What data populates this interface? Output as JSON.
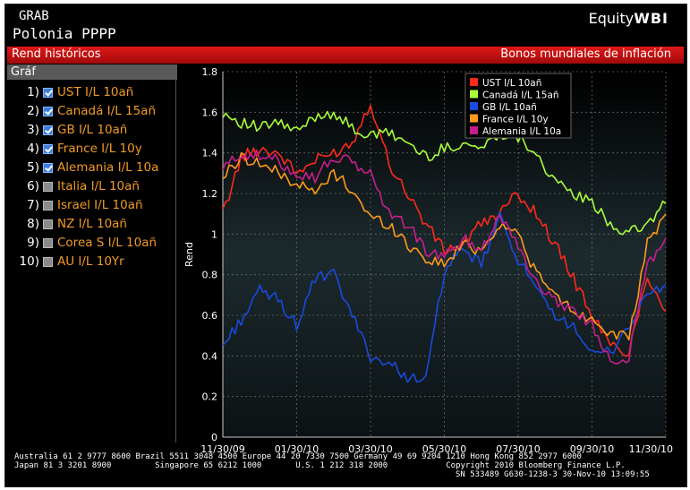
{
  "header": {
    "command": "GRAB",
    "security": "Polonia PPPP",
    "brand_prefix": "Equity",
    "brand_suffix": "WBI"
  },
  "bar": {
    "left": "Rend históricos",
    "right": "Bonos mundiales de inflación"
  },
  "sidebar": {
    "title": "Gráf",
    "items": [
      {
        "num": "1)",
        "label": "UST I/L 10añ",
        "checked": true
      },
      {
        "num": "2)",
        "label": "Canadá I/L 15añ",
        "checked": true
      },
      {
        "num": "3)",
        "label": "GB I/L 10añ",
        "checked": true
      },
      {
        "num": "4)",
        "label": "France I/L 10y",
        "checked": true
      },
      {
        "num": "5)",
        "label": "Alemania I/L 10a",
        "checked": true
      },
      {
        "num": "6)",
        "label": "Italia I/L 10añ",
        "checked": false
      },
      {
        "num": "7)",
        "label": "Israel I/L 10añ",
        "checked": false
      },
      {
        "num": "8)",
        "label": "NZ I/L 10añ",
        "checked": false
      },
      {
        "num": "9)",
        "label": "Corea S I/L 10añ",
        "checked": false
      },
      {
        "num": "10)",
        "label": "AU I/L 10Yr",
        "checked": false
      }
    ]
  },
  "footer": {
    "line1": "Australia 61 2 9777 8600 Brazil 5511 3048 4500 Europe 44 20 7330 7500 Germany 49 69 9204 1210 Hong Kong 852 2977 6000",
    "line2": "Japan 81 3 3201 8900         Singapore 65 6212 1000       U.S. 1 212 318 2000            Copyright 2010 Bloomberg Finance L.P.",
    "line3": "SN 533489 G630-1238-3 30-Nov-10 13:09:55"
  },
  "chart_data": {
    "type": "line",
    "ylabel": "Rend",
    "ylim": [
      0,
      1.8
    ],
    "yticks": [
      "0",
      "0.2",
      "0.4",
      "0.6",
      "0.8",
      "1",
      "1.2",
      "1.4",
      "1.6",
      "1.8"
    ],
    "xticks": [
      "11/30/09",
      "01/30/10",
      "03/30/10",
      "05/30/10",
      "07/30/10",
      "09/30/10",
      "11/30/10"
    ],
    "legend_placement": "top-right",
    "grid": true,
    "x": [
      "11/30/09",
      "12/15/09",
      "12/31/09",
      "01/15/10",
      "01/30/10",
      "02/15/10",
      "02/28/10",
      "03/15/10",
      "03/30/10",
      "04/15/10",
      "04/30/10",
      "05/15/10",
      "05/30/10",
      "06/15/10",
      "06/30/10",
      "07/15/10",
      "07/30/10",
      "08/15/10",
      "08/30/10",
      "09/15/10",
      "09/30/10",
      "10/15/10",
      "10/30/10",
      "11/15/10",
      "11/30/10"
    ],
    "series": [
      {
        "name": "UST I/L 10añ",
        "color": "#ff2a1a",
        "values": [
          1.1,
          1.38,
          1.42,
          1.4,
          1.3,
          1.36,
          1.4,
          1.45,
          1.65,
          1.35,
          1.2,
          1.05,
          0.92,
          0.95,
          1.05,
          1.1,
          1.2,
          1.1,
          0.95,
          0.78,
          0.6,
          0.45,
          0.42,
          0.8,
          0.62
        ]
      },
      {
        "name": "Canadá I/L 15añ",
        "color": "#a8ff3a",
        "values": [
          1.6,
          1.55,
          1.52,
          1.55,
          1.5,
          1.58,
          1.6,
          1.52,
          1.48,
          1.5,
          1.45,
          1.38,
          1.42,
          1.45,
          1.42,
          1.5,
          1.48,
          1.4,
          1.25,
          1.2,
          1.15,
          1.05,
          1.0,
          1.05,
          1.15
        ]
      },
      {
        "name": "GB I/L 10añ",
        "color": "#1a4adf",
        "values": [
          0.45,
          0.58,
          0.72,
          0.68,
          0.55,
          0.78,
          0.8,
          0.6,
          0.4,
          0.36,
          0.3,
          0.28,
          0.82,
          0.92,
          0.85,
          1.08,
          0.88,
          0.72,
          0.58,
          0.56,
          0.4,
          0.42,
          0.55,
          0.7,
          0.75
        ]
      },
      {
        "name": "France I/L 10y",
        "color": "#ff9a1a",
        "values": [
          1.28,
          1.38,
          1.35,
          1.3,
          1.25,
          1.2,
          1.3,
          1.22,
          1.08,
          1.05,
          0.95,
          0.88,
          0.85,
          0.95,
          0.92,
          1.05,
          1.0,
          0.8,
          0.7,
          0.62,
          0.58,
          0.52,
          0.48,
          0.95,
          1.1
        ]
      },
      {
        "name": "Alemania I/L 10a",
        "color": "#c81e8c",
        "values": [
          1.32,
          1.4,
          1.38,
          1.36,
          1.3,
          1.28,
          1.38,
          1.35,
          1.3,
          1.1,
          1.05,
          0.92,
          0.88,
          0.98,
          0.92,
          1.1,
          0.95,
          0.75,
          0.68,
          0.62,
          0.55,
          0.38,
          0.4,
          0.85,
          0.98
        ]
      }
    ]
  }
}
